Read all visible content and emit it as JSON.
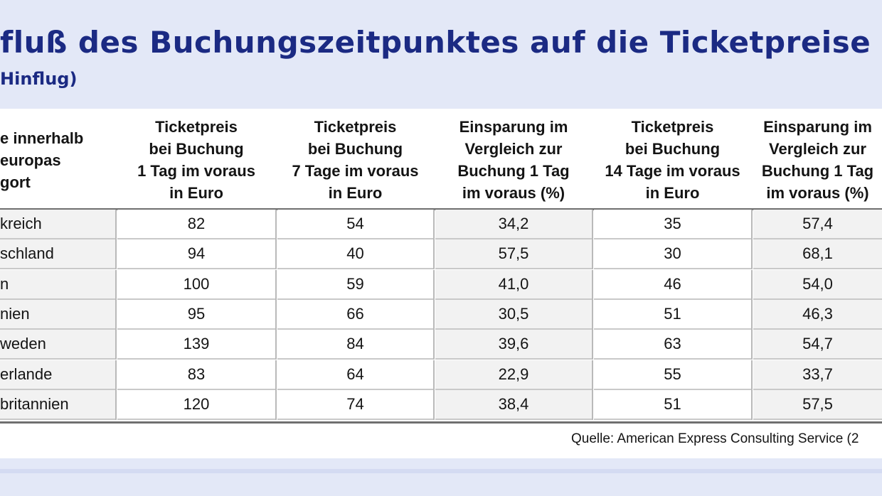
{
  "title": "fluß des Buchungszeitpunktes auf die Ticketpreise",
  "subtitle": "Hinflug)",
  "chart_data": {
    "type": "table",
    "columns": [
      "e innerhalb\neuropas\ngort",
      "Ticketpreis\nbei Buchung\n1 Tag im voraus\nin Euro",
      "Ticketpreis\nbei Buchung\n7 Tage im voraus\nin Euro",
      "Einsparung im\nVergleich zur\nBuchung 1 Tag\nim voraus (%)",
      "Ticketpreis\nbei Buchung\n14 Tage im voraus\nin Euro",
      "Einsparung im\nVergleich zur\nBuchung 1 Tag\nim voraus (%)"
    ],
    "rows": [
      [
        "kreich",
        "82",
        "54",
        "34,2",
        "35",
        "57,4"
      ],
      [
        "schland",
        "94",
        "40",
        "57,5",
        "30",
        "68,1"
      ],
      [
        "n",
        "100",
        "59",
        "41,0",
        "46",
        "54,0"
      ],
      [
        "nien",
        "95",
        "66",
        "30,5",
        "51",
        "46,3"
      ],
      [
        "weden",
        "139",
        "84",
        "39,6",
        "63",
        "54,7"
      ],
      [
        "erlande",
        "83",
        "64",
        "22,9",
        "55",
        "33,7"
      ],
      [
        "britannien",
        "120",
        "74",
        "38,4",
        "51",
        "57,5"
      ]
    ],
    "source": "Quelle: American Express Consulting Service (2"
  },
  "colors": {
    "background": "#e3e8f7",
    "title": "#1b2a83",
    "panel": "#ffffff",
    "shaded_cell": "#f2f2f2"
  }
}
